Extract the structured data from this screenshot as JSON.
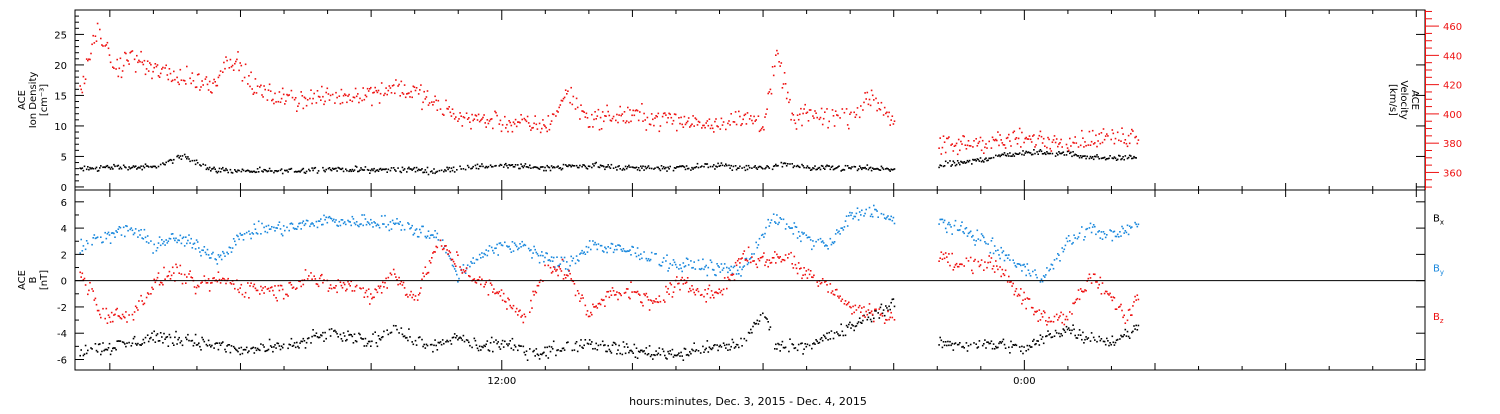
{
  "chart_data": {
    "type": "scatter",
    "xlabel": "hours:minutes, Dec.  3, 2015 - Dec.  4, 2015",
    "x_unit": "hours since 2015-12-03 00:00",
    "xlim": [
      2.2,
      33.2
    ],
    "x_ticks": [
      {
        "x": 12,
        "label": "12:00"
      },
      {
        "x": 24,
        "label": "0:00"
      }
    ],
    "data_gap_hours": [
      21.0,
      22.0
    ],
    "panels": [
      {
        "name": "density-velocity",
        "ylabel_lines": [
          "ACE",
          "Ion Density",
          "[cm⁻³]"
        ],
        "ylim": [
          -0.5,
          29
        ],
        "y_ticks": [
          0,
          5,
          10,
          15,
          20,
          25
        ],
        "right_axis": {
          "label_lines": [
            "ACE",
            "Velocity",
            "[km/s]"
          ],
          "ylim": [
            348,
            471
          ],
          "ticks": [
            360,
            380,
            400,
            420,
            440,
            460
          ],
          "color": "#ee1111"
        },
        "series": [
          {
            "key": "density",
            "axis": "left",
            "color": "#000000",
            "anchors": [
              [
                2.3,
                3.0
              ],
              [
                3.0,
                3.4
              ],
              [
                4.0,
                3.3
              ],
              [
                4.7,
                5.2
              ],
              [
                5.3,
                3.0
              ],
              [
                6.0,
                2.7
              ],
              [
                7.0,
                2.7
              ],
              [
                8.0,
                3.1
              ],
              [
                9.0,
                2.9
              ],
              [
                10.0,
                3.0
              ],
              [
                10.5,
                2.6
              ],
              [
                11.0,
                3.3
              ],
              [
                12.0,
                3.6
              ],
              [
                13.0,
                3.3
              ],
              [
                14.0,
                3.6
              ],
              [
                15.0,
                3.2
              ],
              [
                16.0,
                3.3
              ],
              [
                17.0,
                3.6
              ],
              [
                17.5,
                3.2
              ],
              [
                18.0,
                3.3
              ],
              [
                18.6,
                3.9
              ],
              [
                19.0,
                3.2
              ],
              [
                20.0,
                3.2
              ],
              [
                20.5,
                3.1
              ],
              [
                21.0,
                3.0
              ],
              [
                22.0,
                3.6
              ],
              [
                22.8,
                4.3
              ],
              [
                23.5,
                5.4
              ],
              [
                24.3,
                5.8
              ],
              [
                25.0,
                5.6
              ],
              [
                25.5,
                5.0
              ],
              [
                26.0,
                4.8
              ],
              [
                26.6,
                5.0
              ]
            ],
            "noise": 0.4
          },
          {
            "key": "velocity",
            "axis": "right",
            "color": "#ee1111",
            "anchors": [
              [
                2.3,
                415
              ],
              [
                2.7,
                458
              ],
              [
                3.1,
                430
              ],
              [
                3.5,
                440
              ],
              [
                4.0,
                430
              ],
              [
                4.7,
                425
              ],
              [
                5.3,
                420
              ],
              [
                5.8,
                440
              ],
              [
                6.3,
                418
              ],
              [
                7.0,
                410
              ],
              [
                8.0,
                412
              ],
              [
                9.0,
                415
              ],
              [
                9.5,
                420
              ],
              [
                10.0,
                415
              ],
              [
                10.7,
                403
              ],
              [
                11.2,
                398
              ],
              [
                12.0,
                395
              ],
              [
                12.5,
                393
              ],
              [
                13.0,
                392
              ],
              [
                13.5,
                415
              ],
              [
                14.0,
                397
              ],
              [
                15.0,
                400
              ],
              [
                16.0,
                396
              ],
              [
                17.0,
                395
              ],
              [
                17.7,
                398
              ],
              [
                18.0,
                393
              ],
              [
                18.3,
                440
              ],
              [
                18.7,
                395
              ],
              [
                19.0,
                400
              ],
              [
                20.0,
                398
              ],
              [
                20.5,
                412
              ],
              [
                21.0,
                397
              ],
              [
                22.0,
                378
              ],
              [
                23.0,
                381
              ],
              [
                24.0,
                383
              ],
              [
                25.0,
                382
              ],
              [
                26.0,
                384
              ],
              [
                26.6,
                386
              ]
            ],
            "noise": 6
          }
        ]
      },
      {
        "name": "magnetic-field",
        "ylabel_lines": [
          "ACE",
          "B",
          "[nT]"
        ],
        "ylim": [
          -6.8,
          6.9
        ],
        "y_ticks": [
          -6,
          -4,
          -2,
          0,
          2,
          4,
          6
        ],
        "zero_line": true,
        "series": [
          {
            "key": "bx",
            "name": "Bx",
            "color": "#000000",
            "anchors": [
              [
                2.3,
                -5.3
              ],
              [
                3.0,
                -5.0
              ],
              [
                3.5,
                -4.7
              ],
              [
                4.0,
                -4.2
              ],
              [
                5.0,
                -4.6
              ],
              [
                6.0,
                -5.3
              ],
              [
                7.0,
                -5.0
              ],
              [
                8.0,
                -4.0
              ],
              [
                9.0,
                -4.6
              ],
              [
                9.5,
                -3.5
              ],
              [
                10.0,
                -4.6
              ],
              [
                10.5,
                -4.9
              ],
              [
                11.0,
                -4.2
              ],
              [
                11.5,
                -5.1
              ],
              [
                12.0,
                -4.7
              ],
              [
                12.5,
                -5.3
              ],
              [
                13.0,
                -5.3
              ],
              [
                14.0,
                -4.7
              ],
              [
                15.0,
                -5.3
              ],
              [
                16.0,
                -5.5
              ],
              [
                17.0,
                -5.0
              ],
              [
                17.5,
                -4.7
              ],
              [
                18.0,
                -2.5
              ],
              [
                18.3,
                -4.9
              ],
              [
                19.0,
                -4.9
              ],
              [
                20.0,
                -3.5
              ],
              [
                20.5,
                -2.5
              ],
              [
                21.0,
                -1.7
              ],
              [
                21.5,
                -4.4
              ],
              [
                22.0,
                -4.7
              ],
              [
                23.0,
                -4.8
              ],
              [
                23.5,
                -4.8
              ],
              [
                24.0,
                -5.2
              ],
              [
                24.5,
                -4.2
              ],
              [
                25.0,
                -3.6
              ],
              [
                25.5,
                -4.3
              ],
              [
                26.0,
                -4.6
              ],
              [
                26.6,
                -3.5
              ]
            ],
            "noise": 0.45
          },
          {
            "key": "by",
            "name": "By",
            "color": "#1a88dd",
            "anchors": [
              [
                2.3,
                2.8
              ],
              [
                3.0,
                3.5
              ],
              [
                3.5,
                4.0
              ],
              [
                4.0,
                2.7
              ],
              [
                4.5,
                3.3
              ],
              [
                5.0,
                2.7
              ],
              [
                5.5,
                1.8
              ],
              [
                6.0,
                3.5
              ],
              [
                6.5,
                4.0
              ],
              [
                7.0,
                4.0
              ],
              [
                7.5,
                4.3
              ],
              [
                8.0,
                4.7
              ],
              [
                8.5,
                4.5
              ],
              [
                9.0,
                4.6
              ],
              [
                9.7,
                4.3
              ],
              [
                10.5,
                3.5
              ],
              [
                11.0,
                0.4
              ],
              [
                11.5,
                2.1
              ],
              [
                12.0,
                2.6
              ],
              [
                12.5,
                2.8
              ],
              [
                13.0,
                1.7
              ],
              [
                13.5,
                1.2
              ],
              [
                14.0,
                2.8
              ],
              [
                15.0,
                2.2
              ],
              [
                16.0,
                1.3
              ],
              [
                17.0,
                1.0
              ],
              [
                17.5,
                0.9
              ],
              [
                18.2,
                4.8
              ],
              [
                19.0,
                3.3
              ],
              [
                19.5,
                2.7
              ],
              [
                20.0,
                5.0
              ],
              [
                20.5,
                5.5
              ],
              [
                21.0,
                4.5
              ],
              [
                21.5,
                5.2
              ],
              [
                22.0,
                4.6
              ],
              [
                23.0,
                3.3
              ],
              [
                23.5,
                2.0
              ],
              [
                24.0,
                1.0
              ],
              [
                24.4,
                0.2
              ],
              [
                25.0,
                3.0
              ],
              [
                25.5,
                4.0
              ],
              [
                26.0,
                3.4
              ],
              [
                26.6,
                4.3
              ]
            ],
            "noise": 0.45
          },
          {
            "key": "bz",
            "name": "Bz",
            "color": "#ee1111",
            "anchors": [
              [
                2.3,
                0.7
              ],
              [
                2.8,
                -2.5
              ],
              [
                3.5,
                -2.5
              ],
              [
                4.0,
                -0.2
              ],
              [
                4.5,
                0.8
              ],
              [
                5.0,
                -0.5
              ],
              [
                5.5,
                0.2
              ],
              [
                6.0,
                -0.5
              ],
              [
                6.5,
                -0.5
              ],
              [
                7.0,
                -0.8
              ],
              [
                7.5,
                0.6
              ],
              [
                8.0,
                -0.5
              ],
              [
                8.5,
                -0.3
              ],
              [
                9.0,
                -1.0
              ],
              [
                9.5,
                0.5
              ],
              [
                10.0,
                -1.3
              ],
              [
                10.5,
                2.8
              ],
              [
                11.0,
                1.3
              ],
              [
                11.5,
                -0.2
              ],
              [
                12.0,
                -1.0
              ],
              [
                12.5,
                -3.0
              ],
              [
                13.0,
                1.2
              ],
              [
                13.5,
                0.6
              ],
              [
                14.0,
                -2.5
              ],
              [
                14.5,
                -0.7
              ],
              [
                15.0,
                -1.0
              ],
              [
                15.5,
                -1.7
              ],
              [
                16.0,
                -0.2
              ],
              [
                17.0,
                -1.0
              ],
              [
                17.5,
                2.0
              ],
              [
                18.0,
                1.5
              ],
              [
                18.5,
                2.0
              ],
              [
                19.0,
                0.6
              ],
              [
                19.5,
                -0.3
              ],
              [
                20.0,
                -2.0
              ],
              [
                20.5,
                -2.3
              ],
              [
                21.0,
                -2.8
              ],
              [
                21.5,
                -2.0
              ],
              [
                22.0,
                1.9
              ],
              [
                22.5,
                1.2
              ],
              [
                23.0,
                1.4
              ],
              [
                23.5,
                0.9
              ],
              [
                24.0,
                -1.6
              ],
              [
                24.5,
                -3.0
              ],
              [
                25.0,
                -2.5
              ],
              [
                25.5,
                0.3
              ],
              [
                26.0,
                -1.3
              ],
              [
                26.3,
                -2.8
              ],
              [
                26.6,
                -1.0
              ]
            ],
            "noise": 0.55
          }
        ]
      }
    ]
  }
}
